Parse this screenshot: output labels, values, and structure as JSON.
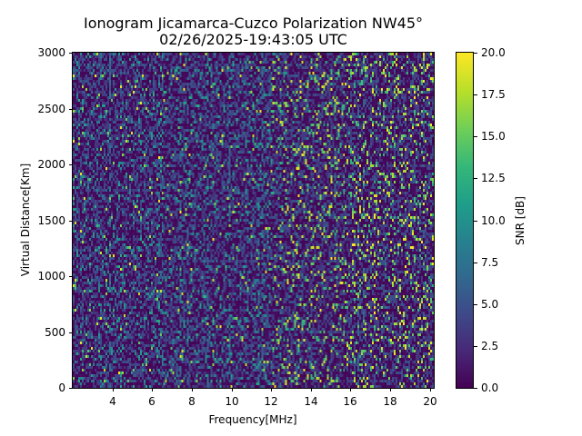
{
  "chart_data": {
    "type": "heatmap",
    "title": "Ionogram Jicamarca-Cuzco Polarization NW45°",
    "subtitle": "02/26/2025-19:43:05 UTC",
    "xlabel": "Frequency[MHz]",
    "ylabel": "Virtual Distance[Km]",
    "colorbar_label": "SNR [dB]",
    "colormap": "viridis",
    "xlim": [
      2.0,
      20.2
    ],
    "ylim": [
      0,
      3000
    ],
    "clim": [
      0.0,
      20.0
    ],
    "x_ticks": [
      "4",
      "6",
      "8",
      "10",
      "12",
      "14",
      "16",
      "18",
      "20"
    ],
    "y_ticks": [
      "0",
      "500",
      "1000",
      "1500",
      "2000",
      "2500",
      "3000"
    ],
    "colorbar_ticks": [
      "0.0",
      "2.5",
      "5.0",
      "7.5",
      "10.0",
      "12.5",
      "15.0",
      "17.5",
      "20.0"
    ],
    "grid": false,
    "description": "Noise-dominated SNR map; mostly 0–5 dB with scattered bright pixels up to ~20 dB, activity increasing above ~12 MHz (columns of higher SNR near 12–20 MHz)"
  }
}
